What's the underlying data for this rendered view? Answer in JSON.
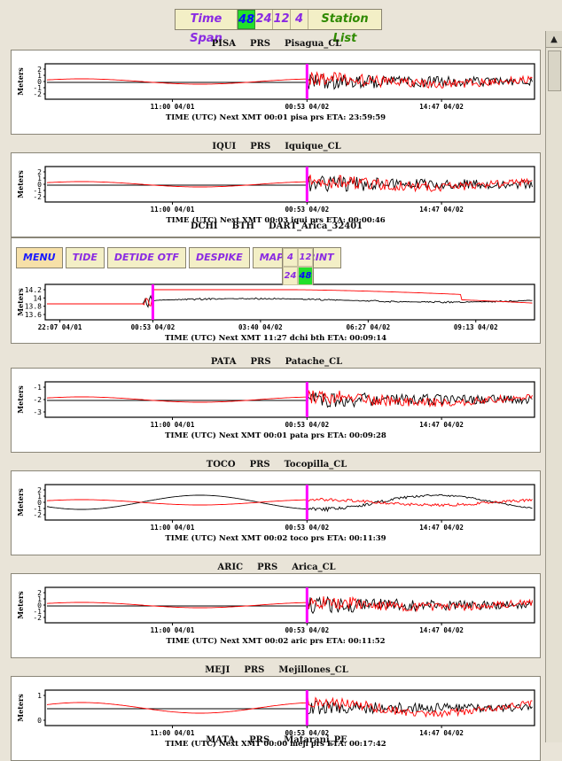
{
  "topbar": {
    "time_span_label": "Time Span",
    "spans": [
      {
        "label": "48",
        "active": true
      },
      {
        "label": "24",
        "active": false
      },
      {
        "label": "12",
        "active": false
      },
      {
        "label": "4",
        "active": false
      }
    ],
    "station_list_label": "Station List"
  },
  "colors": {
    "accent": "#8a2be2",
    "active_green": "#22e02a",
    "observed": "#000000",
    "predicted": "#ff0000",
    "marker": "#ff00ff"
  },
  "panels": [
    {
      "code": "PISA",
      "kind": "PRS",
      "name": "Pisagua_CL",
      "y_ticks": [
        "2",
        "1",
        "0",
        "-1",
        "-2"
      ],
      "x_ticks": [
        "11:00 04/01",
        "00:53 04/02",
        "14:47 04/02"
      ],
      "footer": "TIME (UTC) Next XMT 00:01  pisa prs      ETA: 23:59:59",
      "y_label": "Meters"
    },
    {
      "code": "IQUI",
      "kind": "PRS",
      "name": "Iquique_CL",
      "y_ticks": [
        "2",
        "1",
        "0",
        "-1",
        "-2"
      ],
      "x_ticks": [
        "11:00 04/01",
        "00:53 04/02",
        "14:47 04/02"
      ],
      "footer": "TIME (UTC) Next XMT 00:03  iqui prs      ETA: 00:00:46",
      "y_label": "Meters"
    },
    {
      "code": "DCHI",
      "kind": "BTH",
      "name": "DART_Arica_32401",
      "y_ticks": [
        "14.2",
        "14",
        "13.8",
        "13.6"
      ],
      "x_ticks": [
        "22:07 04/01",
        "00:53 04/02",
        "03:40 04/02",
        "06:27 04/02",
        "09:13 04/02"
      ],
      "footer": "TIME (UTC) Next XMT 11:27  dchi bth      ETA: 00:09:14",
      "y_label": "Meters",
      "toolbar": [
        "MENU",
        "TIDE",
        "DETIDE OTF",
        "DESPIKE",
        "MAP",
        "PRINT"
      ],
      "spans": [
        {
          "label": "4",
          "active": false
        },
        {
          "label": "12",
          "active": false
        },
        {
          "label": "24",
          "active": false
        },
        {
          "label": "48",
          "active": true
        }
      ]
    },
    {
      "code": "PATA",
      "kind": "PRS",
      "name": "Patache_CL",
      "y_ticks": [
        "-1",
        "-2",
        "-3"
      ],
      "x_ticks": [
        "11:00 04/01",
        "00:53 04/02",
        "14:47 04/02"
      ],
      "footer": "TIME (UTC) Next XMT 00:01  pata prs      ETA: 00:09:28",
      "y_label": "Meters"
    },
    {
      "code": "TOCO",
      "kind": "PRS",
      "name": "Tocopilla_CL",
      "y_ticks": [
        "2",
        "1",
        "0",
        "-1",
        "-2"
      ],
      "x_ticks": [
        "11:00 04/01",
        "00:53 04/02",
        "14:47 04/02"
      ],
      "footer": "TIME (UTC) Next XMT 00:02  toco prs      ETA: 00:11:39",
      "y_label": "Meters"
    },
    {
      "code": "ARIC",
      "kind": "PRS",
      "name": "Arica_CL",
      "y_ticks": [
        "2",
        "1",
        "0",
        "-1",
        "-2"
      ],
      "x_ticks": [
        "11:00 04/01",
        "00:53 04/02",
        "14:47 04/02"
      ],
      "footer": "TIME (UTC) Next XMT 00:02  aric prs      ETA: 00:11:52",
      "y_label": "Meters"
    },
    {
      "code": "MEJI",
      "kind": "PRS",
      "name": "Mejillones_CL",
      "y_ticks": [
        "1",
        "0"
      ],
      "x_ticks": [
        "11:00 04/01",
        "00:53 04/02",
        "14:47 04/02"
      ],
      "footer": "TIME (UTC) Next XMT 00:00  meji prs      ETA: 00:17:42",
      "y_label": "Meters"
    }
  ],
  "next_station": {
    "code": "MATA",
    "kind": "PRS",
    "name": "Matarani_PE"
  }
}
